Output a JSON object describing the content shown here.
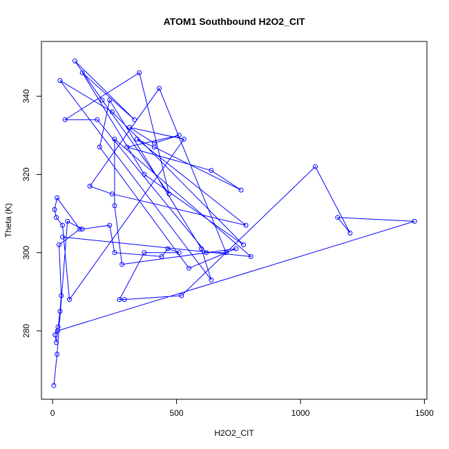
{
  "chart_data": {
    "type": "line",
    "title": "ATOM1 Southbound H2O2_CIT",
    "xlabel": "H2O2_CIT",
    "ylabel": "Theta (K)",
    "xlim": [
      -45,
      1510
    ],
    "ylim": [
      262.5,
      354
    ],
    "x_ticks": [
      0,
      500,
      1000,
      1500
    ],
    "y_ticks": [
      280,
      300,
      320,
      340
    ],
    "grid": false,
    "legend": "none",
    "marker": "open-circle",
    "color": "#0000ff",
    "series": [
      {
        "x": [
          5,
          18,
          60,
          120,
          230,
          250,
          440,
          465,
          510,
          370,
          270,
          290,
          520,
          1060,
          1200,
          1150,
          1460,
          20,
          15,
          10,
          22,
          30,
          35,
          26,
          110,
          18,
          8,
          15,
          40,
          68,
          530,
          310,
          410,
          510,
          300,
          640,
          760,
          410,
          340,
          780,
          240,
          150,
          430,
          700,
          620,
          180,
          50,
          350,
          470,
          200,
          90,
          330,
          120,
          370,
          770,
          240,
          30,
          640,
          600,
          230,
          190,
          550,
          740,
          280,
          250,
          250,
          800,
          40
        ],
        "y": [
          266,
          274,
          308,
          306,
          307,
          300,
          299,
          301,
          300,
          300,
          288,
          288,
          289,
          322,
          305,
          309,
          308,
          280,
          277,
          279,
          281,
          285,
          289,
          302,
          306,
          314,
          311,
          309,
          307,
          288,
          329,
          332,
          328,
          330,
          327,
          321,
          316,
          327,
          329,
          307,
          315,
          317,
          342,
          300,
          300,
          334,
          334,
          346,
          315,
          339,
          349,
          334,
          346,
          320,
          302,
          336,
          344,
          293,
          301,
          339,
          327,
          296,
          301,
          297,
          312,
          329,
          299,
          304
        ]
      }
    ]
  }
}
